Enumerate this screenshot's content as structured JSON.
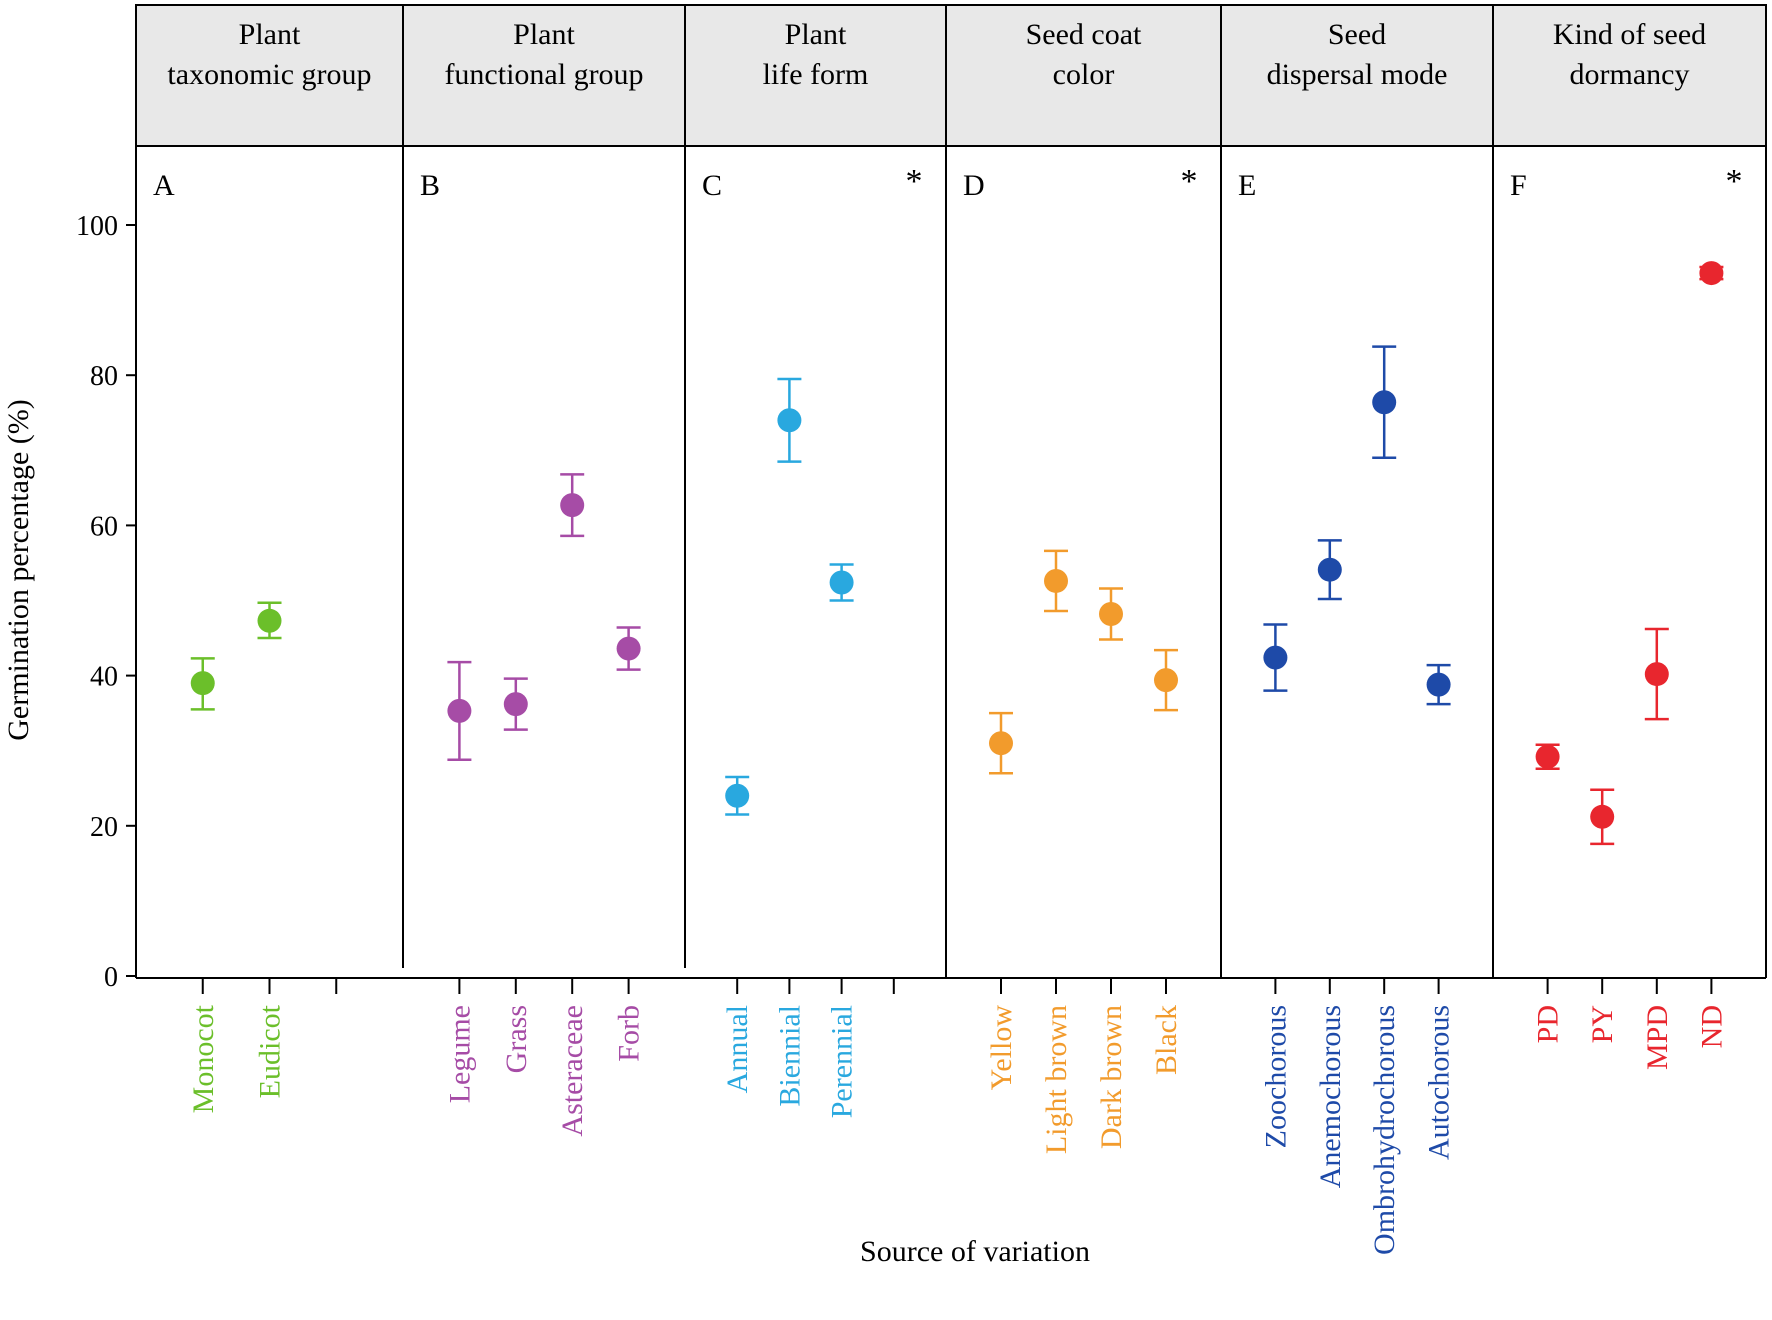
{
  "chart_data": {
    "type": "scatter",
    "subtype": "dot-with-error-bars",
    "xlabel": "Source of variation",
    "ylabel": "Germination percentage (%)",
    "ylim": [
      0,
      110
    ],
    "yticks": [
      0,
      20,
      40,
      60,
      80,
      100
    ],
    "grid": false,
    "panels": [
      {
        "letter": "A",
        "title_lines": [
          "Plant",
          "taxonomic group"
        ],
        "significant": false,
        "color": "#6bbf2a",
        "slots": 3,
        "points": [
          {
            "category": "Monocot",
            "slot": 1,
            "value": 39,
            "lower": 35.5,
            "upper": 42.3
          },
          {
            "category": "Eudicot",
            "slot": 2,
            "value": 47.3,
            "lower": 45,
            "upper": 49.7
          }
        ]
      },
      {
        "letter": "B",
        "title_lines": [
          "Plant",
          "functional group"
        ],
        "significant": false,
        "color": "#a64ca6",
        "slots": 4,
        "points": [
          {
            "category": "Legume",
            "slot": 1,
            "value": 35.3,
            "lower": 28.8,
            "upper": 41.8
          },
          {
            "category": "Grass",
            "slot": 2,
            "value": 36.2,
            "lower": 32.8,
            "upper": 39.6
          },
          {
            "category": "Asteraceae",
            "slot": 3,
            "value": 62.7,
            "lower": 58.6,
            "upper": 66.8
          },
          {
            "category": "Forb",
            "slot": 4,
            "value": 43.6,
            "lower": 40.8,
            "upper": 46.4
          }
        ]
      },
      {
        "letter": "C",
        "title_lines": [
          "Plant",
          "life form"
        ],
        "significant": true,
        "star": "*",
        "color": "#29a8df",
        "slots": 4,
        "points": [
          {
            "category": "Annual",
            "slot": 1,
            "value": 24,
            "lower": 21.5,
            "upper": 26.5
          },
          {
            "category": "Biennial",
            "slot": 2,
            "value": 74,
            "lower": 68.5,
            "upper": 79.5
          },
          {
            "category": "Perennial",
            "slot": 3,
            "value": 52.4,
            "lower": 50,
            "upper": 54.8
          }
        ]
      },
      {
        "letter": "D",
        "title_lines": [
          "Seed coat",
          "color"
        ],
        "significant": true,
        "star": "*",
        "color": "#f29b2c",
        "slots": 4,
        "points": [
          {
            "category": "Yellow",
            "slot": 1,
            "value": 31,
            "lower": 27,
            "upper": 35
          },
          {
            "category": "Light  brown",
            "slot": 2,
            "value": 52.6,
            "lower": 48.6,
            "upper": 56.6
          },
          {
            "category": "Dark brown",
            "slot": 3,
            "value": 48.2,
            "lower": 44.8,
            "upper": 51.6
          },
          {
            "category": "Black",
            "slot": 4,
            "value": 39.4,
            "lower": 35.4,
            "upper": 43.4
          }
        ]
      },
      {
        "letter": "E",
        "title_lines": [
          "Seed",
          "dispersal mode"
        ],
        "significant": false,
        "color": "#1e4aa8",
        "slots": 4,
        "points": [
          {
            "category": "Zoochorous",
            "slot": 1,
            "value": 42.4,
            "lower": 38,
            "upper": 46.8
          },
          {
            "category": "Anemochorous",
            "slot": 2,
            "value": 54.1,
            "lower": 50.2,
            "upper": 58
          },
          {
            "category": "Ombrohydrochorous",
            "slot": 3,
            "value": 76.4,
            "lower": 69,
            "upper": 83.8
          },
          {
            "category": "Autochorous",
            "slot": 4,
            "value": 38.8,
            "lower": 36.2,
            "upper": 41.4
          }
        ]
      },
      {
        "letter": "F",
        "title_lines": [
          "Kind of seed",
          "dormancy"
        ],
        "significant": true,
        "star": "*",
        "color": "#e8262e",
        "slots": 4,
        "points": [
          {
            "category": "PD",
            "slot": 1,
            "value": 29.2,
            "lower": 27.6,
            "upper": 30.8
          },
          {
            "category": "PY",
            "slot": 2,
            "value": 21.2,
            "lower": 17.6,
            "upper": 24.8
          },
          {
            "category": "MPD",
            "slot": 3,
            "value": 40.2,
            "lower": 34.2,
            "upper": 46.2
          },
          {
            "category": "ND",
            "slot": 4,
            "value": 93.6,
            "lower": 92.8,
            "upper": 94.4
          }
        ]
      }
    ]
  }
}
